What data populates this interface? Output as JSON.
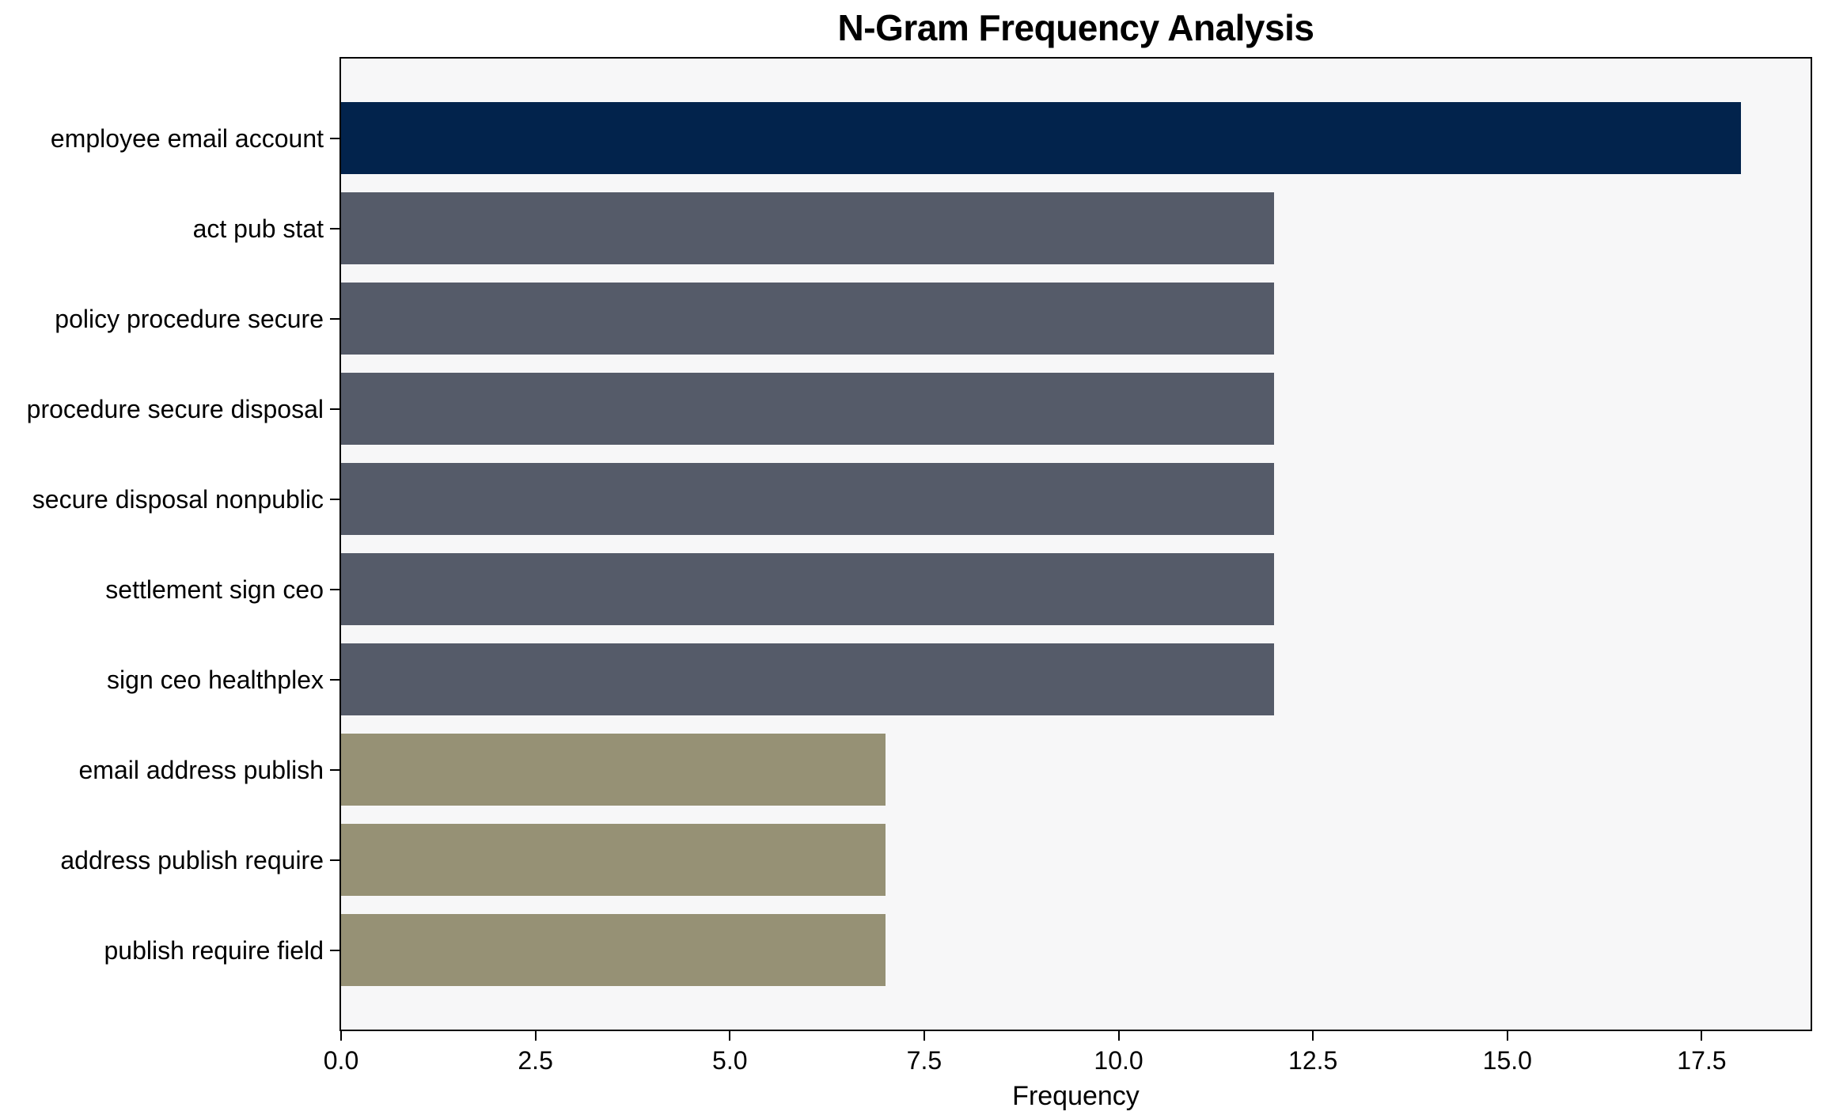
{
  "chart_data": {
    "type": "bar",
    "orientation": "horizontal",
    "title": "N-Gram Frequency Analysis",
    "xlabel": "Frequency",
    "ylabel": "",
    "categories": [
      "employee email account",
      "act pub stat",
      "policy procedure secure",
      "procedure secure disposal",
      "secure disposal nonpublic",
      "settlement sign ceo",
      "sign ceo healthplex",
      "email address publish",
      "address publish require",
      "publish require field"
    ],
    "values": [
      18,
      12,
      12,
      12,
      12,
      12,
      12,
      7,
      7,
      7
    ],
    "bar_colors": [
      "#02234c",
      "#555b69",
      "#555b69",
      "#555b69",
      "#555b69",
      "#555b69",
      "#555b69",
      "#969175",
      "#969175",
      "#969175"
    ],
    "x_ticks": [
      0.0,
      2.5,
      5.0,
      7.5,
      10.0,
      12.5,
      15.0,
      17.5
    ],
    "x_tick_labels": [
      "0.0",
      "2.5",
      "5.0",
      "7.5",
      "10.0",
      "12.5",
      "15.0",
      "17.5"
    ],
    "xlim": [
      0,
      18.9
    ],
    "grid": false,
    "legend_position": "none",
    "plot_background": "#f7f7f8",
    "spine_color": "#000000",
    "figure_background": "#ffffff"
  }
}
